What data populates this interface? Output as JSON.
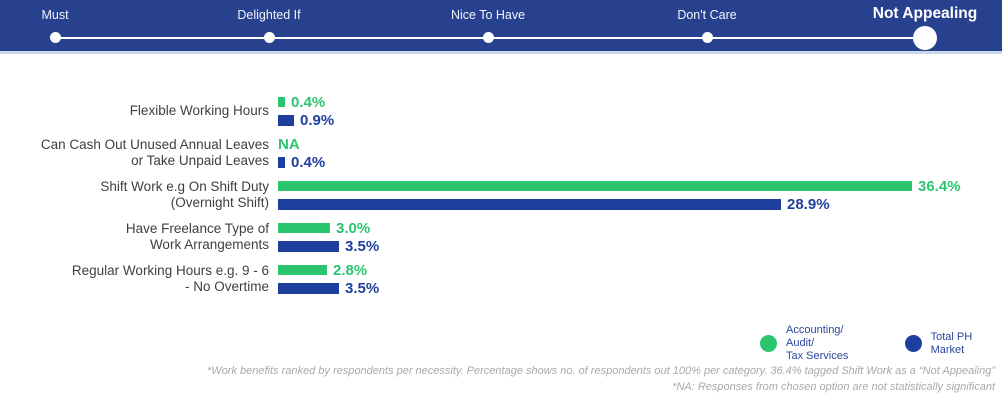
{
  "scale": {
    "items": [
      {
        "label": "Must",
        "selected": false
      },
      {
        "label": "Delighted If",
        "selected": false
      },
      {
        "label": "Nice To Have",
        "selected": false
      },
      {
        "label": "Don't Care",
        "selected": false
      },
      {
        "label": "Not Appealing",
        "selected": true
      }
    ]
  },
  "chart_data": {
    "type": "bar",
    "orientation": "horizontal",
    "unit": "percent",
    "x_max": 36.4,
    "grid": false,
    "legend_position": "bottom-right",
    "legend": [
      {
        "name": "Accounting/ Audit/ Tax Services",
        "line1": "Accounting/ Audit/",
        "line2": "Tax Services",
        "color": "#2cc56f"
      },
      {
        "name": "Total PH Market",
        "line1": "Total PH Market",
        "line2": "",
        "color": "#1f3f9e"
      }
    ],
    "rows": [
      {
        "label_line1": "Flexible Working Hours",
        "label_line2": "",
        "accounting_value": 0.4,
        "accounting_label": "0.4%",
        "market_value": 0.9,
        "market_label": "0.9%"
      },
      {
        "label_line1": "Can Cash Out Unused Annual Leaves",
        "label_line2": "or Take Unpaid Leaves",
        "accounting_value": null,
        "accounting_label": "NA",
        "market_value": 0.4,
        "market_label": "0.4%"
      },
      {
        "label_line1": "Shift Work e.g On Shift Duty",
        "label_line2": "(Overnight Shift)",
        "accounting_value": 36.4,
        "accounting_label": "36.4%",
        "market_value": 28.9,
        "market_label": "28.9%"
      },
      {
        "label_line1": "Have Freelance Type of",
        "label_line2": "Work Arrangements",
        "accounting_value": 3.0,
        "accounting_label": "3.0%",
        "market_value": 3.5,
        "market_label": "3.5%"
      },
      {
        "label_line1": "Regular Working Hours e.g. 9 - 6",
        "label_line2": "- No Overtime",
        "accounting_value": 2.8,
        "accounting_label": "2.8%",
        "market_value": 3.5,
        "market_label": "3.5%"
      }
    ]
  },
  "footnotes": {
    "line1": "*Work benefits ranked by respondents per necessity. Percentage shows no. of respondents out 100% per category. 36.4% tagged Shift Work as a “Not Appealing”",
    "line2": "*NA: Responses from chosen option are not statistically significant"
  },
  "colors": {
    "header_navy": "#27418f",
    "header_strip": "#c9d9ec",
    "accounting_green": "#2cc56f",
    "market_blue": "#1f3f9e",
    "category_text": "#3f3f3f",
    "footnote_gray": "#a9a9a9"
  }
}
